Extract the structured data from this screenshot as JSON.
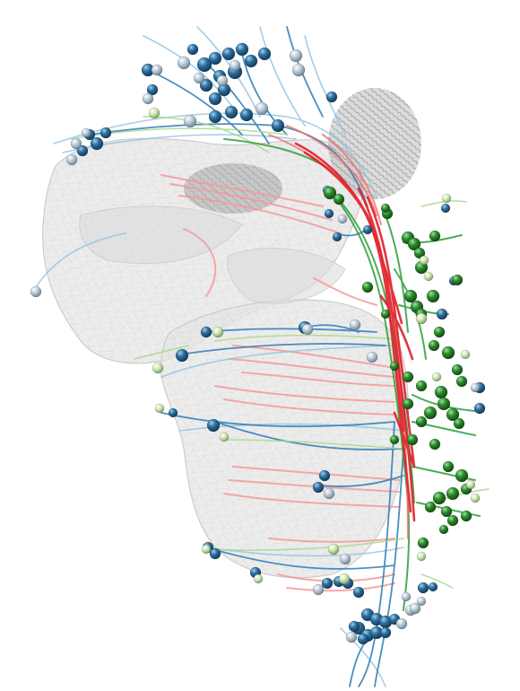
{
  "colors": {
    "background": "#ffffff",
    "mesh_fill": "#d9d9d9",
    "mesh_edge": "#bdbdbd",
    "neuropil_dark": "#8c8c8c",
    "red_tract": "#e0202a",
    "red_light": "#f49a9a",
    "green_fiber": "#2f9e3a",
    "green_light": "#a7d98a",
    "blue_fiber": "#2c7bb6",
    "blue_light": "#8fc3e0",
    "soma_blue": "#2f6f9f",
    "soma_light": "#b8c9d6",
    "soma_green": "#2e8b2e",
    "soma_pale_green": "#cfe8b0"
  },
  "scene": {
    "meshes": [
      "brain-region-upper",
      "brain-region-lower",
      "neuropil-knob"
    ],
    "fiber_groups": [
      "red-tract",
      "green-bundle",
      "blue-bundle",
      "pink-projections"
    ],
    "soma_groups": [
      "blue-somata",
      "green-somata",
      "grey-somata"
    ]
  }
}
